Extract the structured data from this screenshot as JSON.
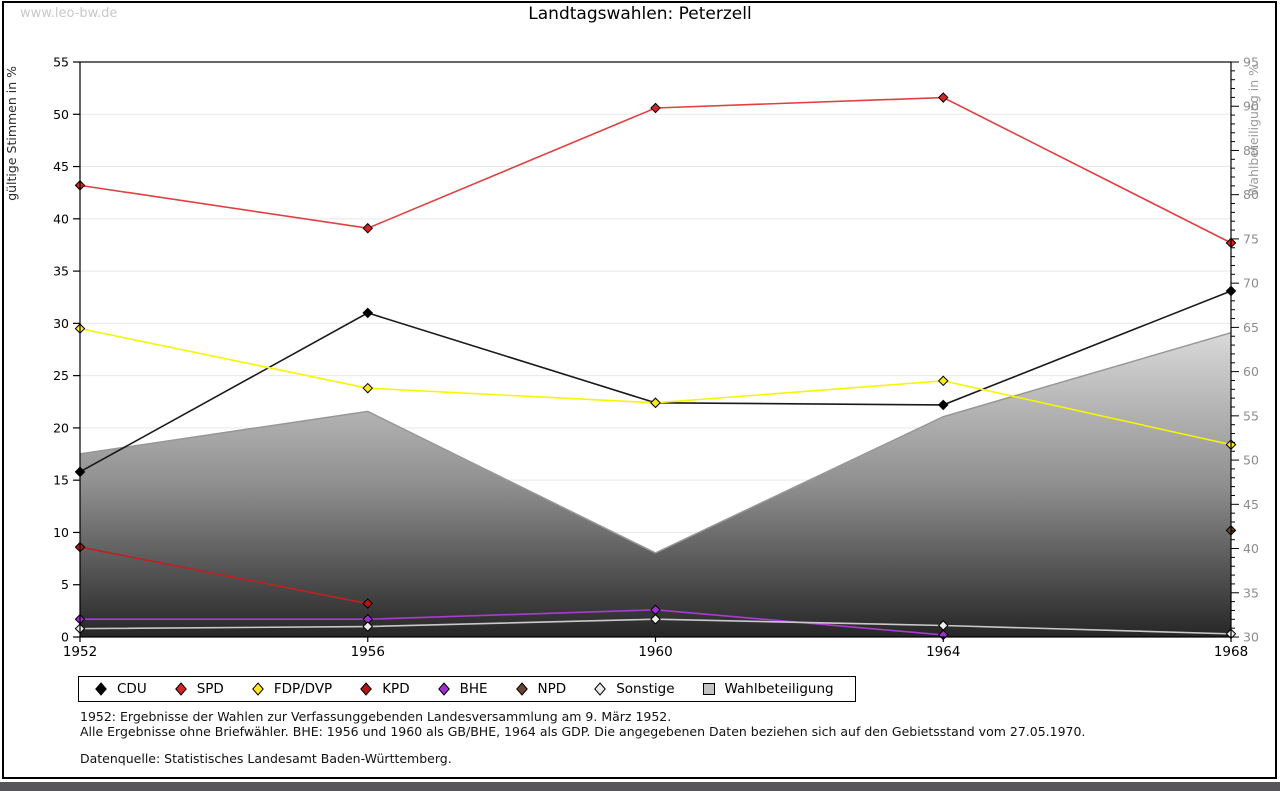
{
  "watermark": "www.leo-bw.de",
  "title": "Landtagswahlen: Peterzell",
  "chart_data": {
    "type": "line",
    "title": "Landtagswahlen: Peterzell",
    "x_categories": [
      "1952",
      "1956",
      "1960",
      "1964",
      "1968"
    ],
    "y_left": {
      "label": "gültige Stimmen in %",
      "min": 0,
      "max": 55,
      "tick_step": 5
    },
    "y_right": {
      "label": "Wahlbeteiligung in %",
      "min": 30,
      "max": 95,
      "tick_step": 5,
      "minor_step": 1
    },
    "grid": true,
    "legend_position": "bottom",
    "series": [
      {
        "name": "CDU",
        "axis": "left",
        "line_color": "#1a1a1a",
        "marker_color": "#000000",
        "values": [
          15.8,
          31.0,
          22.4,
          22.2,
          33.1
        ]
      },
      {
        "name": "SPD",
        "axis": "left",
        "line_color": "#e04040",
        "marker_color": "#d42424",
        "values": [
          43.2,
          39.1,
          50.6,
          51.6,
          37.7
        ]
      },
      {
        "name": "FDP/DVP",
        "axis": "left",
        "line_color": "#f6f600",
        "marker_color": "#ffe81a",
        "values": [
          29.5,
          23.8,
          22.4,
          24.5,
          18.4
        ]
      },
      {
        "name": "KPD",
        "axis": "left",
        "line_color": "#c02020",
        "marker_color": "#b51414",
        "values": [
          8.6,
          3.2,
          null,
          null,
          null
        ]
      },
      {
        "name": "BHE",
        "axis": "left",
        "line_color": "#a93ad2",
        "marker_color": "#9d2fd0",
        "values": [
          1.7,
          1.7,
          2.6,
          0.2,
          null
        ]
      },
      {
        "name": "NPD",
        "axis": "left",
        "line_color": "#6b4236",
        "marker_color": "#6b4236",
        "values": [
          null,
          null,
          null,
          null,
          10.2
        ]
      },
      {
        "name": "Sonstige",
        "axis": "left",
        "line_color": "#c9c9c9",
        "marker_color": "#ececec",
        "values": [
          0.8,
          1.0,
          1.7,
          1.1,
          0.3
        ]
      }
    ],
    "area_series": {
      "name": "Wahlbeteiligung",
      "axis": "right",
      "stroke": "#979797",
      "fill_top": "#d9d9d9",
      "fill_mid": "#8f8f8f",
      "fill_bottom": "#262626",
      "legend_fill": "#c2c2c2",
      "values": [
        50.7,
        55.5,
        39.5,
        54.9,
        64.4
      ]
    }
  },
  "footnotes": {
    "line1": "1952: Ergebnisse der Wahlen zur Verfassunggebenden Landesversammlung am 9. März 1952.",
    "line2": "Alle Ergebnisse ohne Briefwähler. BHE: 1956 und 1960 als GB/BHE, 1964 als GDP. Die angegebenen Daten beziehen sich auf den Gebietsstand vom 27.05.1970.",
    "source": "Datenquelle: Statistisches Landesamt Baden-Württemberg."
  }
}
